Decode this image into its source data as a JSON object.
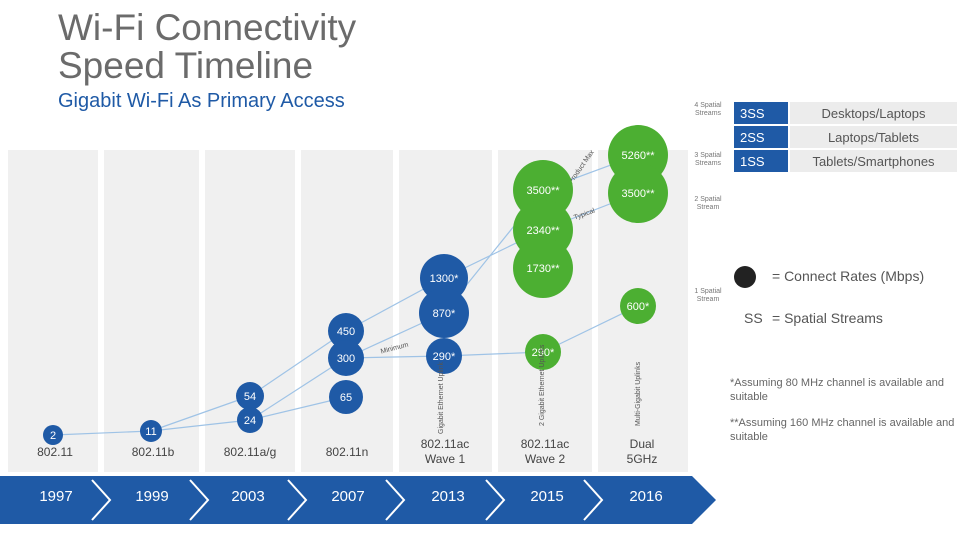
{
  "header": {
    "title_line1": "Wi-Fi Connectivity",
    "title_line2": "Speed Timeline",
    "subtitle": "Gigabit Wi-Fi As Primary Access"
  },
  "chart_data": {
    "type": "scatter",
    "title": "Wi-Fi Connectivity Speed Timeline",
    "subtitle": "Gigabit Wi-Fi As Primary Access",
    "years": [
      "1997",
      "1999",
      "2003",
      "2007",
      "2013",
      "2015",
      "2016"
    ],
    "standards": [
      {
        "year": "1997",
        "label": "802.11"
      },
      {
        "year": "1999",
        "label": "802.11b"
      },
      {
        "year": "2003",
        "label": "802.11a/g"
      },
      {
        "year": "2007",
        "label": "802.11n"
      },
      {
        "year": "2013",
        "label": "802.11ac",
        "label2": "Wave 1"
      },
      {
        "year": "2015",
        "label": "802.11ac",
        "label2": "Wave 2"
      },
      {
        "year": "2016",
        "label": "Dual",
        "label2": "5GHz"
      }
    ],
    "uplinks": [
      {
        "year": "2013",
        "label": "Gigabit Ethernet Uplink"
      },
      {
        "year": "2015",
        "label": "2 Gigabit Ethernet Uplinks"
      },
      {
        "year": "2016",
        "label": "Multi-Gigabit Uplinks"
      }
    ],
    "connect_rates": [
      {
        "year": "1997",
        "value": 2,
        "label": "2",
        "color": "#1f5aa6"
      },
      {
        "year": "1999",
        "value": 11,
        "label": "11",
        "color": "#1f5aa6"
      },
      {
        "year": "2003",
        "value": 54,
        "label": "54",
        "color": "#1f5aa6"
      },
      {
        "year": "2003",
        "value": 24,
        "label": "24",
        "color": "#1f5aa6"
      },
      {
        "year": "2007",
        "value": 450,
        "label": "450",
        "color": "#1f5aa6"
      },
      {
        "year": "2007",
        "value": 300,
        "label": "300",
        "color": "#1f5aa6"
      },
      {
        "year": "2007",
        "value": 65,
        "label": "65",
        "color": "#1f5aa6"
      },
      {
        "year": "2013",
        "value": 1300,
        "label": "1300*",
        "color": "#1f5aa6"
      },
      {
        "year": "2013",
        "value": 870,
        "label": "870*",
        "color": "#1f5aa6"
      },
      {
        "year": "2013",
        "value": 290,
        "label": "290*",
        "color": "#1f5aa6"
      },
      {
        "year": "2015",
        "value": 3500,
        "label": "3500**",
        "color": "#4caf32"
      },
      {
        "year": "2015",
        "value": 2340,
        "label": "2340**",
        "color": "#4caf32"
      },
      {
        "year": "2015",
        "value": 1730,
        "label": "1730**",
        "color": "#4caf32"
      },
      {
        "year": "2015",
        "value": 290,
        "label": "290*",
        "color": "#4caf32"
      },
      {
        "year": "2016",
        "value": 5260,
        "label": "5260**",
        "color": "#4caf32"
      },
      {
        "year": "2016",
        "value": 3500,
        "label": "3500**",
        "color": "#4caf32"
      },
      {
        "year": "2016",
        "value": 600,
        "label": "600*",
        "color": "#4caf32"
      }
    ],
    "trend_labels": [
      "Product Max",
      "Typical",
      "Minimum"
    ],
    "spatial_stream_labels": [
      "4 Spatial Streams",
      "3 Spatial Streams",
      "2 Spatial Stream",
      "1 Spatial Stream"
    ]
  },
  "legend": {
    "rows": [
      {
        "ss": "3SS",
        "desc": "Desktops/Laptops"
      },
      {
        "ss": "2SS",
        "desc": "Laptops/Tablets"
      },
      {
        "ss": "1SS",
        "desc": "Tablets/Smartphones"
      }
    ],
    "connect_rates_label": "= Connect Rates (Mbps)",
    "ss_abbrev": "SS",
    "ss_label": "= Spatial Streams"
  },
  "notes": {
    "note1": "*Assuming 80 MHz  channel is available and suitable",
    "note2": "**Assuming 160 MHz channel is available and suitable"
  },
  "colors": {
    "blue": "#1f5aa6",
    "green": "#4caf32",
    "band": "#f0f0f0"
  }
}
